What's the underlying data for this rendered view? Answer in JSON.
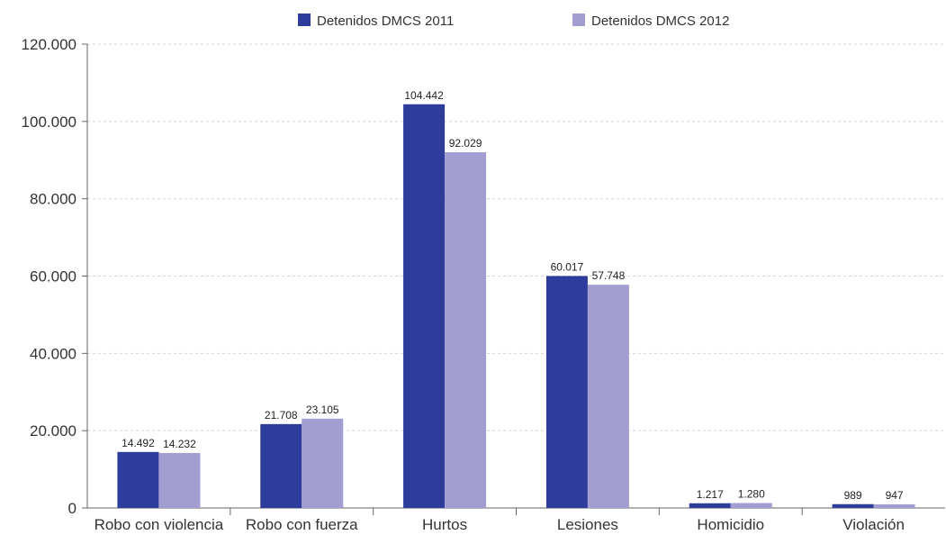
{
  "chart_data": {
    "type": "bar",
    "title": "",
    "xlabel": "",
    "ylabel": "",
    "categories": [
      "Robo con violencia",
      "Robo con fuerza",
      "Hurtos",
      "Lesiones",
      "Homicidio",
      "Violación"
    ],
    "series": [
      {
        "name": "Detenidos DMCS 2011",
        "color": "#2e3d9b",
        "values": [
          14492,
          21708,
          104442,
          60017,
          1217,
          989
        ],
        "labels": [
          "14.492",
          "21.708",
          "104.442",
          "60.017",
          "1.217",
          "989"
        ]
      },
      {
        "name": "Detenidos DMCS 2012",
        "color": "#a29ed2",
        "values": [
          14232,
          23105,
          92029,
          57748,
          1280,
          947
        ],
        "labels": [
          "14.232",
          "23.105",
          "92.029",
          "57.748",
          "1.280",
          "947"
        ]
      }
    ],
    "ylim": [
      0,
      120000
    ],
    "yticks": [
      0,
      20000,
      40000,
      60000,
      80000,
      100000,
      120000
    ],
    "ytick_labels": [
      "0",
      "20.000",
      "40.000",
      "60.000",
      "80.000",
      "100.000",
      "120.000"
    ],
    "grid": true,
    "grid_style": "dashed",
    "legend_position": "top-center"
  }
}
